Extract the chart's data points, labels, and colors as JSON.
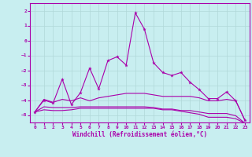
{
  "background_color": "#c8eef0",
  "grid_color": "#b0d8d8",
  "line_color": "#aa00aa",
  "xlabel": "Windchill (Refroidissement éolien,°C)",
  "xlabel_color": "#aa00aa",
  "ylim": [
    -5.5,
    2.5
  ],
  "xlim": [
    -0.5,
    23.5
  ],
  "yticks": [
    -5,
    -4,
    -3,
    -2,
    -1,
    0,
    1,
    2
  ],
  "xticks": [
    0,
    1,
    2,
    3,
    4,
    5,
    6,
    7,
    8,
    9,
    10,
    11,
    12,
    13,
    14,
    15,
    16,
    17,
    18,
    19,
    20,
    21,
    22,
    23
  ],
  "curve1_x": [
    0,
    1,
    2,
    3,
    4,
    5,
    6,
    7,
    8,
    9,
    10,
    11,
    12,
    13,
    14,
    15,
    16,
    17,
    18,
    19,
    20,
    21,
    22,
    23
  ],
  "curve1_y": [
    -4.8,
    -4.0,
    -4.2,
    -2.6,
    -4.3,
    -3.5,
    -1.85,
    -3.25,
    -1.35,
    -1.1,
    -1.65,
    1.85,
    0.75,
    -1.5,
    -2.15,
    -2.35,
    -2.15,
    -2.8,
    -3.3,
    -3.9,
    -3.9,
    -3.45,
    -4.05,
    -5.35
  ],
  "curve2_x": [
    0,
    1,
    2,
    3,
    4,
    5,
    6,
    7,
    8,
    9,
    10,
    11,
    12,
    13,
    14,
    15,
    16,
    17,
    18,
    19,
    20,
    21,
    22,
    23
  ],
  "curve2_y": [
    -4.8,
    -3.95,
    -4.15,
    -3.95,
    -4.05,
    -3.85,
    -4.05,
    -3.85,
    -3.75,
    -3.65,
    -3.55,
    -3.55,
    -3.55,
    -3.65,
    -3.75,
    -3.75,
    -3.75,
    -3.75,
    -3.85,
    -4.05,
    -4.05,
    -3.95,
    -4.05,
    -5.35
  ],
  "curve3_x": [
    0,
    1,
    2,
    3,
    4,
    5,
    6,
    7,
    8,
    9,
    10,
    11,
    12,
    13,
    14,
    15,
    16,
    17,
    18,
    19,
    20,
    21,
    22,
    23
  ],
  "curve3_y": [
    -4.8,
    -4.45,
    -4.5,
    -4.5,
    -4.5,
    -4.45,
    -4.45,
    -4.45,
    -4.45,
    -4.45,
    -4.45,
    -4.45,
    -4.45,
    -4.5,
    -4.6,
    -4.6,
    -4.7,
    -4.7,
    -4.8,
    -4.9,
    -4.9,
    -4.9,
    -5.05,
    -5.55
  ],
  "curve4_x": [
    0,
    1,
    2,
    3,
    4,
    5,
    6,
    7,
    8,
    9,
    10,
    11,
    12,
    13,
    14,
    15,
    16,
    17,
    18,
    19,
    20,
    21,
    22,
    23
  ],
  "curve4_y": [
    -4.8,
    -4.65,
    -4.7,
    -4.7,
    -4.65,
    -4.55,
    -4.55,
    -4.55,
    -4.55,
    -4.55,
    -4.55,
    -4.55,
    -4.55,
    -4.55,
    -4.65,
    -4.65,
    -4.75,
    -4.85,
    -4.95,
    -5.15,
    -5.15,
    -5.15,
    -5.25,
    -5.55
  ]
}
